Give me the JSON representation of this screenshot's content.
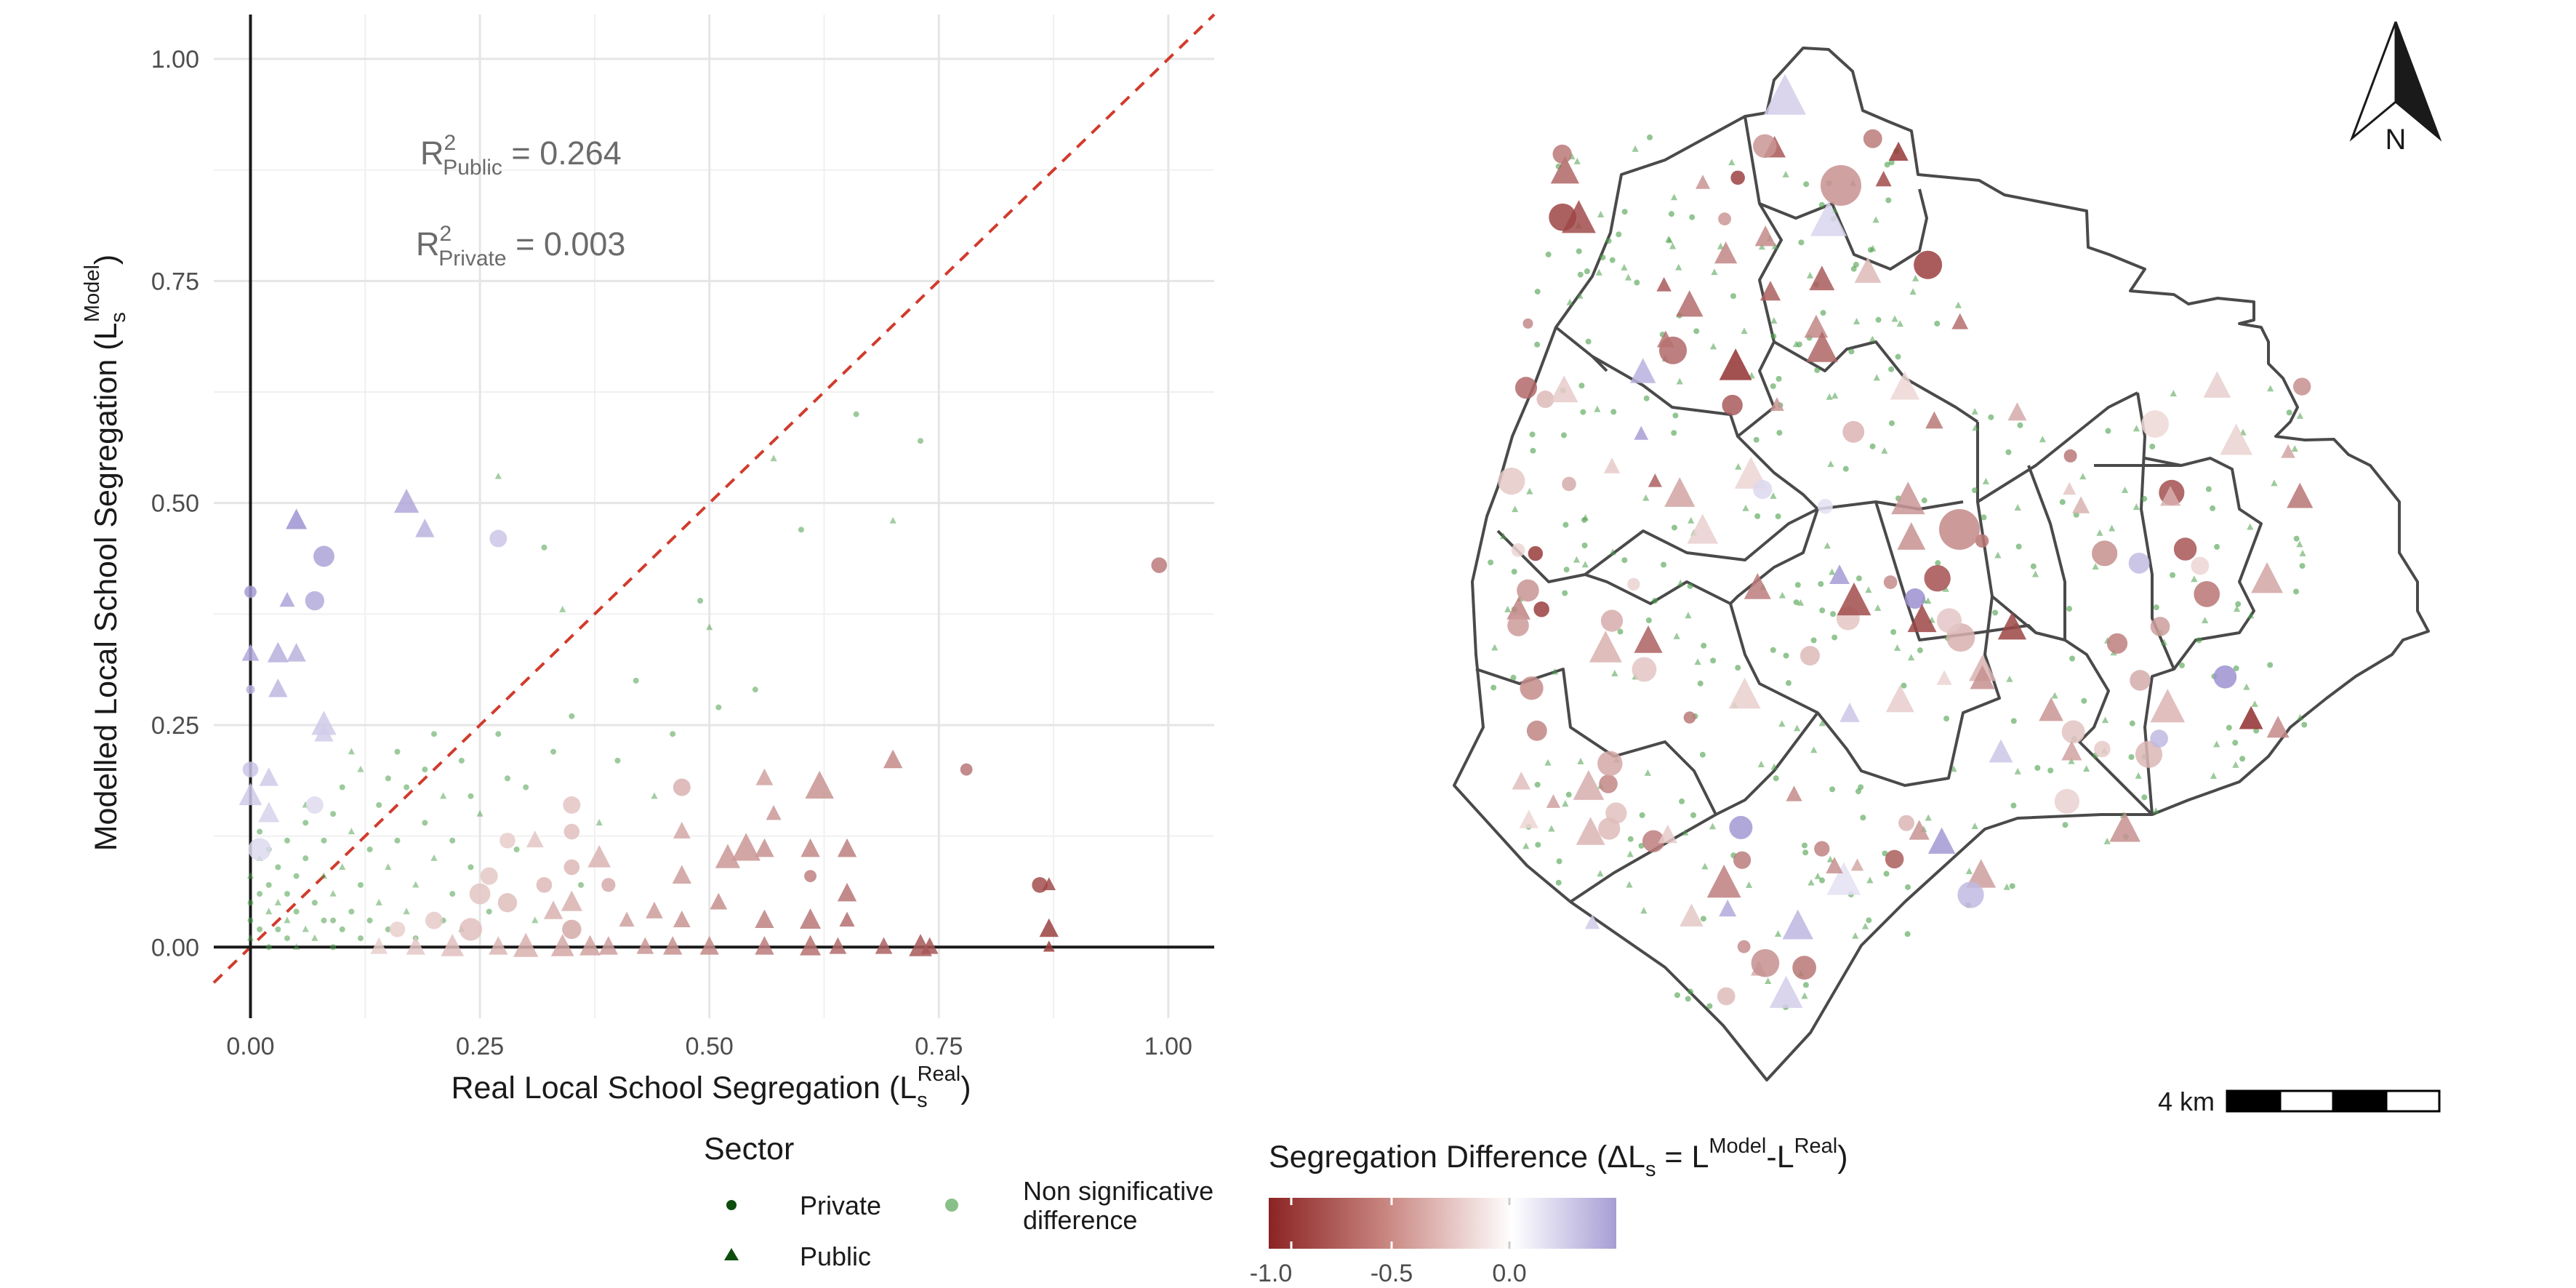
{
  "chart_data": {
    "type": "scatter",
    "xlabel": "Real Local School Segregation (L",
    "xlabel_sub": "s",
    "xlabel_sup": "Real",
    "xlabel_close": ")",
    "ylabel": "Modelled Local School Segregation (L",
    "ylabel_sub": "s",
    "ylabel_sup": "Model",
    "ylabel_close": ")",
    "xlim": [
      -0.04,
      1.05
    ],
    "ylim": [
      -0.08,
      1.05
    ],
    "xticks": [
      "0.00",
      "0.25",
      "0.50",
      "0.75",
      "1.00"
    ],
    "yticks": [
      "0.00",
      "0.25",
      "0.50",
      "0.75",
      "1.00"
    ],
    "grid": true,
    "reference_line": "y = x",
    "annotations": [
      {
        "r": "R",
        "sup": "2",
        "sub": "Public",
        "eq": " = 0.264"
      },
      {
        "r": "R",
        "sup": "2",
        "sub": "Private",
        "eq": " = 0.003"
      }
    ],
    "colors": {
      "negative": "#8b2323",
      "neutral": "#ffffff",
      "positive": "#9a8fcf",
      "nonsig": "#4a9e4a",
      "sector": "#0d4d0d",
      "refline": "#d13b2c"
    },
    "points": [
      {
        "x": 0.0,
        "y": 0.4,
        "shape": "circle",
        "size": 14,
        "diff": 0.4
      },
      {
        "x": 0.0,
        "y": 0.33,
        "shape": "triangle",
        "size": 18,
        "diff": 0.33
      },
      {
        "x": 0.0,
        "y": 0.29,
        "shape": "circle",
        "size": 10,
        "diff": 0.29
      },
      {
        "x": 0.0,
        "y": 0.2,
        "shape": "circle",
        "size": 18,
        "diff": 0.2
      },
      {
        "x": 0.0,
        "y": 0.17,
        "shape": "triangle",
        "size": 24,
        "diff": 0.17
      },
      {
        "x": 0.01,
        "y": 0.11,
        "shape": "circle",
        "size": 26,
        "diff": 0.1
      },
      {
        "x": 0.02,
        "y": 0.15,
        "shape": "triangle",
        "size": 22,
        "diff": 0.13
      },
      {
        "x": 0.02,
        "y": 0.19,
        "shape": "triangle",
        "size": 20,
        "diff": 0.17
      },
      {
        "x": 0.03,
        "y": 0.29,
        "shape": "triangle",
        "size": 20,
        "diff": 0.26
      },
      {
        "x": 0.03,
        "y": 0.33,
        "shape": "triangle",
        "size": 22,
        "diff": 0.3
      },
      {
        "x": 0.05,
        "y": 0.33,
        "shape": "triangle",
        "size": 20,
        "diff": 0.28
      },
      {
        "x": 0.04,
        "y": 0.39,
        "shape": "triangle",
        "size": 16,
        "diff": 0.35
      },
      {
        "x": 0.05,
        "y": 0.48,
        "shape": "triangle",
        "size": 22,
        "diff": 0.43
      },
      {
        "x": 0.07,
        "y": 0.39,
        "shape": "circle",
        "size": 22,
        "diff": 0.32
      },
      {
        "x": 0.08,
        "y": 0.44,
        "shape": "circle",
        "size": 24,
        "diff": 0.36
      },
      {
        "x": 0.08,
        "y": 0.25,
        "shape": "triangle",
        "size": 26,
        "diff": 0.17
      },
      {
        "x": 0.08,
        "y": 0.24,
        "shape": "triangle",
        "size": 20,
        "diff": 0.16
      },
      {
        "x": 0.07,
        "y": 0.16,
        "shape": "circle",
        "size": 20,
        "diff": 0.09
      },
      {
        "x": 0.17,
        "y": 0.5,
        "shape": "triangle",
        "size": 26,
        "diff": 0.33
      },
      {
        "x": 0.19,
        "y": 0.47,
        "shape": "triangle",
        "size": 20,
        "diff": 0.28
      },
      {
        "x": 0.27,
        "y": 0.46,
        "shape": "circle",
        "size": 20,
        "diff": 0.19
      },
      {
        "x": 0.99,
        "y": 0.43,
        "shape": "circle",
        "size": 18,
        "diff": -0.56
      },
      {
        "x": 0.7,
        "y": 0.21,
        "shape": "triangle",
        "size": 20,
        "diff": -0.49
      },
      {
        "x": 0.78,
        "y": 0.2,
        "shape": "circle",
        "size": 14,
        "diff": -0.58
      },
      {
        "x": 0.86,
        "y": 0.07,
        "shape": "circle",
        "size": 18,
        "diff": -0.79
      },
      {
        "x": 0.87,
        "y": 0.07,
        "shape": "triangle",
        "size": 14,
        "diff": -0.8
      },
      {
        "x": 0.87,
        "y": 0.02,
        "shape": "triangle",
        "size": 20,
        "diff": -0.85
      },
      {
        "x": 0.87,
        "y": 0.0,
        "shape": "triangle",
        "size": 12,
        "diff": -0.87
      },
      {
        "x": 0.73,
        "y": 0.0,
        "shape": "triangle",
        "size": 24,
        "diff": -0.73
      },
      {
        "x": 0.74,
        "y": 0.0,
        "shape": "triangle",
        "size": 18,
        "diff": -0.74
      },
      {
        "x": 0.69,
        "y": 0.0,
        "shape": "triangle",
        "size": 18,
        "diff": -0.69
      },
      {
        "x": 0.64,
        "y": 0.0,
        "shape": "triangle",
        "size": 18,
        "diff": -0.64
      },
      {
        "x": 0.61,
        "y": 0.0,
        "shape": "triangle",
        "size": 22,
        "diff": -0.61
      },
      {
        "x": 0.61,
        "y": 0.03,
        "shape": "triangle",
        "size": 22,
        "diff": -0.58
      },
      {
        "x": 0.61,
        "y": 0.08,
        "shape": "circle",
        "size": 14,
        "diff": -0.53
      },
      {
        "x": 0.61,
        "y": 0.11,
        "shape": "triangle",
        "size": 20,
        "diff": -0.5
      },
      {
        "x": 0.62,
        "y": 0.18,
        "shape": "triangle",
        "size": 30,
        "diff": -0.44
      },
      {
        "x": 0.65,
        "y": 0.11,
        "shape": "triangle",
        "size": 20,
        "diff": -0.54
      },
      {
        "x": 0.65,
        "y": 0.06,
        "shape": "triangle",
        "size": 20,
        "diff": -0.59
      },
      {
        "x": 0.65,
        "y": 0.03,
        "shape": "triangle",
        "size": 16,
        "diff": -0.62
      },
      {
        "x": 0.56,
        "y": 0.0,
        "shape": "triangle",
        "size": 20,
        "diff": -0.56
      },
      {
        "x": 0.56,
        "y": 0.03,
        "shape": "triangle",
        "size": 20,
        "diff": -0.53
      },
      {
        "x": 0.56,
        "y": 0.11,
        "shape": "triangle",
        "size": 20,
        "diff": -0.45
      },
      {
        "x": 0.56,
        "y": 0.19,
        "shape": "triangle",
        "size": 18,
        "diff": -0.37
      },
      {
        "x": 0.57,
        "y": 0.15,
        "shape": "triangle",
        "size": 16,
        "diff": -0.42
      },
      {
        "x": 0.54,
        "y": 0.11,
        "shape": "triangle",
        "size": 30,
        "diff": -0.43
      },
      {
        "x": 0.52,
        "y": 0.1,
        "shape": "triangle",
        "size": 26,
        "diff": -0.42
      },
      {
        "x": 0.51,
        "y": 0.05,
        "shape": "triangle",
        "size": 18,
        "diff": -0.46
      },
      {
        "x": 0.5,
        "y": 0.0,
        "shape": "triangle",
        "size": 20,
        "diff": -0.5
      },
      {
        "x": 0.47,
        "y": 0.18,
        "shape": "circle",
        "size": 20,
        "diff": -0.29
      },
      {
        "x": 0.47,
        "y": 0.13,
        "shape": "triangle",
        "size": 18,
        "diff": -0.34
      },
      {
        "x": 0.47,
        "y": 0.08,
        "shape": "triangle",
        "size": 20,
        "diff": -0.39
      },
      {
        "x": 0.47,
        "y": 0.03,
        "shape": "triangle",
        "size": 18,
        "diff": -0.44
      },
      {
        "x": 0.46,
        "y": 0.0,
        "shape": "triangle",
        "size": 20,
        "diff": -0.46
      },
      {
        "x": 0.43,
        "y": 0.0,
        "shape": "triangle",
        "size": 18,
        "diff": -0.43
      },
      {
        "x": 0.41,
        "y": 0.03,
        "shape": "triangle",
        "size": 16,
        "diff": -0.38
      },
      {
        "x": 0.39,
        "y": 0.07,
        "shape": "circle",
        "size": 16,
        "diff": -0.32
      },
      {
        "x": 0.38,
        "y": 0.1,
        "shape": "triangle",
        "size": 24,
        "diff": -0.28
      },
      {
        "x": 0.37,
        "y": 0.0,
        "shape": "triangle",
        "size": 22,
        "diff": -0.37
      },
      {
        "x": 0.35,
        "y": 0.16,
        "shape": "circle",
        "size": 20,
        "diff": -0.19
      },
      {
        "x": 0.35,
        "y": 0.13,
        "shape": "circle",
        "size": 18,
        "diff": -0.22
      },
      {
        "x": 0.35,
        "y": 0.09,
        "shape": "circle",
        "size": 18,
        "diff": -0.26
      },
      {
        "x": 0.35,
        "y": 0.05,
        "shape": "triangle",
        "size": 22,
        "diff": -0.3
      },
      {
        "x": 0.35,
        "y": 0.02,
        "shape": "circle",
        "size": 22,
        "diff": -0.33
      },
      {
        "x": 0.34,
        "y": 0.0,
        "shape": "triangle",
        "size": 24,
        "diff": -0.34
      },
      {
        "x": 0.32,
        "y": 0.07,
        "shape": "circle",
        "size": 18,
        "diff": -0.25
      },
      {
        "x": 0.31,
        "y": 0.12,
        "shape": "triangle",
        "size": 18,
        "diff": -0.19
      },
      {
        "x": 0.3,
        "y": 0.0,
        "shape": "triangle",
        "size": 26,
        "diff": -0.3
      },
      {
        "x": 0.28,
        "y": 0.12,
        "shape": "circle",
        "size": 18,
        "diff": -0.16
      },
      {
        "x": 0.28,
        "y": 0.05,
        "shape": "circle",
        "size": 22,
        "diff": -0.23
      },
      {
        "x": 0.27,
        "y": 0.0,
        "shape": "triangle",
        "size": 20,
        "diff": -0.27
      },
      {
        "x": 0.25,
        "y": 0.06,
        "shape": "circle",
        "size": 24,
        "diff": -0.19
      },
      {
        "x": 0.24,
        "y": 0.02,
        "shape": "circle",
        "size": 26,
        "diff": -0.22
      },
      {
        "x": 0.22,
        "y": 0.0,
        "shape": "triangle",
        "size": 24,
        "diff": -0.22
      },
      {
        "x": 0.2,
        "y": 0.03,
        "shape": "circle",
        "size": 20,
        "diff": -0.17
      },
      {
        "x": 0.18,
        "y": 0.0,
        "shape": "triangle",
        "size": 20,
        "diff": -0.18
      },
      {
        "x": 0.16,
        "y": 0.02,
        "shape": "circle",
        "size": 18,
        "diff": -0.14
      },
      {
        "x": 0.14,
        "y": 0.0,
        "shape": "triangle",
        "size": 18,
        "diff": -0.14
      },
      {
        "x": 0.39,
        "y": 0.0,
        "shape": "triangle",
        "size": 20,
        "diff": -0.39
      },
      {
        "x": 0.26,
        "y": 0.08,
        "shape": "circle",
        "size": 20,
        "diff": -0.18
      },
      {
        "x": 0.33,
        "y": 0.04,
        "shape": "triangle",
        "size": 20,
        "diff": -0.29
      },
      {
        "x": 0.44,
        "y": 0.04,
        "shape": "triangle",
        "size": 18,
        "diff": -0.4
      }
    ],
    "nonsig_points": [
      [
        0.0,
        0.01
      ],
      [
        0.0,
        0.03
      ],
      [
        0.0,
        0.05
      ],
      [
        0.0,
        0.08
      ],
      [
        0.01,
        0.02
      ],
      [
        0.01,
        0.06
      ],
      [
        0.01,
        0.1
      ],
      [
        0.01,
        0.13
      ],
      [
        0.02,
        0.0
      ],
      [
        0.02,
        0.04
      ],
      [
        0.02,
        0.07
      ],
      [
        0.03,
        0.02
      ],
      [
        0.03,
        0.05
      ],
      [
        0.03,
        0.09
      ],
      [
        0.04,
        0.01
      ],
      [
        0.04,
        0.03
      ],
      [
        0.04,
        0.06
      ],
      [
        0.04,
        0.12
      ],
      [
        0.05,
        0.0
      ],
      [
        0.05,
        0.04
      ],
      [
        0.05,
        0.08
      ],
      [
        0.06,
        0.02
      ],
      [
        0.06,
        0.1
      ],
      [
        0.06,
        0.14
      ],
      [
        0.07,
        0.01
      ],
      [
        0.07,
        0.05
      ],
      [
        0.08,
        0.03
      ],
      [
        0.08,
        0.08
      ],
      [
        0.08,
        0.12
      ],
      [
        0.09,
        0.0
      ],
      [
        0.09,
        0.06
      ],
      [
        0.09,
        0.15
      ],
      [
        0.1,
        0.02
      ],
      [
        0.1,
        0.09
      ],
      [
        0.1,
        0.18
      ],
      [
        0.11,
        0.04
      ],
      [
        0.11,
        0.13
      ],
      [
        0.12,
        0.01
      ],
      [
        0.12,
        0.07
      ],
      [
        0.12,
        0.2
      ],
      [
        0.13,
        0.03
      ],
      [
        0.13,
        0.11
      ],
      [
        0.14,
        0.05
      ],
      [
        0.14,
        0.16
      ],
      [
        0.15,
        0.02
      ],
      [
        0.15,
        0.09
      ],
      [
        0.16,
        0.12
      ],
      [
        0.16,
        0.22
      ],
      [
        0.17,
        0.04
      ],
      [
        0.17,
        0.18
      ],
      [
        0.18,
        0.01
      ],
      [
        0.18,
        0.07
      ],
      [
        0.19,
        0.14
      ],
      [
        0.19,
        0.2
      ],
      [
        0.2,
        0.1
      ],
      [
        0.2,
        0.24
      ],
      [
        0.21,
        0.03
      ],
      [
        0.21,
        0.17
      ],
      [
        0.22,
        0.06
      ],
      [
        0.22,
        0.12
      ],
      [
        0.23,
        0.02
      ],
      [
        0.23,
        0.21
      ],
      [
        0.24,
        0.09
      ],
      [
        0.25,
        0.15
      ],
      [
        0.26,
        0.04
      ],
      [
        0.27,
        0.24
      ],
      [
        0.27,
        0.53
      ],
      [
        0.29,
        0.11
      ],
      [
        0.3,
        0.18
      ],
      [
        0.31,
        0.03
      ],
      [
        0.32,
        0.45
      ],
      [
        0.33,
        0.22
      ],
      [
        0.34,
        0.38
      ],
      [
        0.35,
        0.26
      ],
      [
        0.36,
        0.07
      ],
      [
        0.38,
        0.14
      ],
      [
        0.4,
        0.21
      ],
      [
        0.42,
        0.3
      ],
      [
        0.44,
        0.17
      ],
      [
        0.46,
        0.24
      ],
      [
        0.49,
        0.39
      ],
      [
        0.5,
        0.36
      ],
      [
        0.51,
        0.27
      ],
      [
        0.55,
        0.29
      ],
      [
        0.57,
        0.55
      ],
      [
        0.6,
        0.47
      ],
      [
        0.66,
        0.6
      ],
      [
        0.7,
        0.48
      ],
      [
        0.73,
        0.57
      ],
      [
        0.15,
        0.19
      ],
      [
        0.11,
        0.22
      ],
      [
        0.24,
        0.17
      ],
      [
        0.28,
        0.19
      ],
      [
        0.06,
        0.16
      ],
      [
        0.02,
        0.11
      ],
      [
        0.09,
        0.03
      ]
    ]
  },
  "legend_sector": {
    "title": "Sector",
    "private_label": "Private",
    "public_label": "Public",
    "nonsig_label_1": "Non significative",
    "nonsig_label_2": "difference"
  },
  "legend_diff": {
    "title_1": "Segregation Difference (ΔL",
    "title_sub": "s",
    "title_2": " = L",
    "title_sup1": "Model",
    "title_3": "-L",
    "title_sup2": "Real",
    "title_4": ")",
    "ticks": [
      "-1.0",
      "-0.5",
      "0.0"
    ]
  },
  "map": {
    "north_label": "N",
    "scale_label": "4 km"
  }
}
